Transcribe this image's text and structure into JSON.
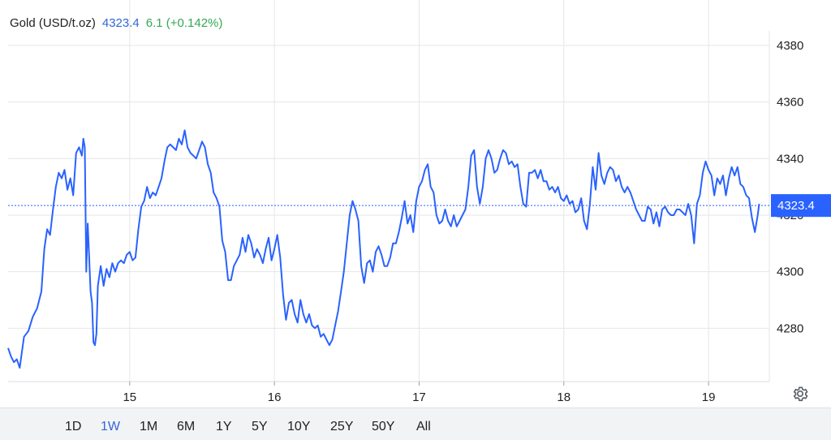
{
  "header": {
    "name": "Gold (USD/t.oz)",
    "price": "4323.4",
    "change": "6.1 (+0.142%)"
  },
  "colors": {
    "line": "#2962ff",
    "price_accent": "#3367d6",
    "change_positive": "#34a853",
    "grid": "#e6e6e6"
  },
  "ranges": [
    "1D",
    "1W",
    "1M",
    "6M",
    "1Y",
    "5Y",
    "10Y",
    "25Y",
    "50Y",
    "All"
  ],
  "active_range": "1W",
  "settings_icon": "gear-icon",
  "chart_data": {
    "type": "line",
    "title": "",
    "xlabel": "",
    "ylabel": "",
    "x_ticks": [
      {
        "label": "15",
        "x": 15.0
      },
      {
        "label": "16",
        "x": 16.0
      },
      {
        "label": "17",
        "x": 17.0
      },
      {
        "label": "18",
        "x": 18.0
      },
      {
        "label": "19",
        "x": 19.0
      }
    ],
    "xlim": [
      14.16,
      19.42
    ],
    "y_ticks": [
      4280,
      4300,
      4320,
      4340,
      4360,
      4380
    ],
    "ylim": [
      4260,
      4385
    ],
    "last_price": 4323.4,
    "last_price_label": "4323.4",
    "grid": true,
    "series": [
      {
        "values": [
          [
            14.16,
            4273
          ],
          [
            14.18,
            4270
          ],
          [
            14.2,
            4268
          ],
          [
            14.22,
            4269
          ],
          [
            14.24,
            4266
          ],
          [
            14.27,
            4277
          ],
          [
            14.3,
            4279
          ],
          [
            14.33,
            4284
          ],
          [
            14.36,
            4287
          ],
          [
            14.39,
            4293
          ],
          [
            14.41,
            4308
          ],
          [
            14.43,
            4315
          ],
          [
            14.45,
            4313
          ],
          [
            14.47,
            4322
          ],
          [
            14.49,
            4330
          ],
          [
            14.51,
            4335
          ],
          [
            14.53,
            4333
          ],
          [
            14.55,
            4336
          ],
          [
            14.57,
            4329
          ],
          [
            14.59,
            4333
          ],
          [
            14.61,
            4327
          ],
          [
            14.63,
            4342
          ],
          [
            14.65,
            4344
          ],
          [
            14.67,
            4341
          ],
          [
            14.68,
            4347
          ],
          [
            14.69,
            4344
          ],
          [
            14.7,
            4300
          ],
          [
            14.71,
            4317
          ],
          [
            14.72,
            4305
          ],
          [
            14.73,
            4293
          ],
          [
            14.74,
            4289
          ],
          [
            14.75,
            4275
          ],
          [
            14.76,
            4274
          ],
          [
            14.77,
            4278
          ],
          [
            14.78,
            4295
          ],
          [
            14.8,
            4302
          ],
          [
            14.82,
            4295
          ],
          [
            14.84,
            4301
          ],
          [
            14.86,
            4298
          ],
          [
            14.88,
            4303
          ],
          [
            14.9,
            4300
          ],
          [
            14.92,
            4303
          ],
          [
            14.94,
            4304
          ],
          [
            14.96,
            4303
          ],
          [
            14.98,
            4306
          ],
          [
            15.0,
            4307
          ],
          [
            15.02,
            4304
          ],
          [
            15.04,
            4305
          ],
          [
            15.06,
            4315
          ],
          [
            15.08,
            4323
          ],
          [
            15.1,
            4325
          ],
          [
            15.12,
            4330
          ],
          [
            15.14,
            4326
          ],
          [
            15.16,
            4328
          ],
          [
            15.18,
            4327
          ],
          [
            15.2,
            4330
          ],
          [
            15.22,
            4333
          ],
          [
            15.24,
            4339
          ],
          [
            15.26,
            4344
          ],
          [
            15.28,
            4345
          ],
          [
            15.3,
            4344
          ],
          [
            15.32,
            4343
          ],
          [
            15.34,
            4347
          ],
          [
            15.36,
            4345
          ],
          [
            15.38,
            4350
          ],
          [
            15.4,
            4344
          ],
          [
            15.42,
            4342
          ],
          [
            15.44,
            4341
          ],
          [
            15.46,
            4340
          ],
          [
            15.48,
            4343
          ],
          [
            15.5,
            4346
          ],
          [
            15.52,
            4344
          ],
          [
            15.54,
            4338
          ],
          [
            15.56,
            4335
          ],
          [
            15.58,
            4328
          ],
          [
            15.6,
            4326
          ],
          [
            15.62,
            4323
          ],
          [
            15.64,
            4311
          ],
          [
            15.66,
            4307
          ],
          [
            15.68,
            4297
          ],
          [
            15.7,
            4297
          ],
          [
            15.72,
            4302
          ],
          [
            15.74,
            4304
          ],
          [
            15.76,
            4306
          ],
          [
            15.78,
            4312
          ],
          [
            15.8,
            4307
          ],
          [
            15.82,
            4313
          ],
          [
            15.84,
            4310
          ],
          [
            15.86,
            4305
          ],
          [
            15.88,
            4308
          ],
          [
            15.9,
            4306
          ],
          [
            15.92,
            4303
          ],
          [
            15.94,
            4308
          ],
          [
            15.96,
            4312
          ],
          [
            15.98,
            4304
          ],
          [
            16.0,
            4308
          ],
          [
            16.02,
            4313
          ],
          [
            16.04,
            4305
          ],
          [
            16.06,
            4292
          ],
          [
            16.08,
            4283
          ],
          [
            16.1,
            4289
          ],
          [
            16.12,
            4290
          ],
          [
            16.14,
            4285
          ],
          [
            16.16,
            4282
          ],
          [
            16.18,
            4290
          ],
          [
            16.2,
            4285
          ],
          [
            16.22,
            4282
          ],
          [
            16.24,
            4285
          ],
          [
            16.26,
            4281
          ],
          [
            16.28,
            4280
          ],
          [
            16.3,
            4281
          ],
          [
            16.32,
            4277
          ],
          [
            16.34,
            4278
          ],
          [
            16.36,
            4276
          ],
          [
            16.38,
            4274
          ],
          [
            16.4,
            4276
          ],
          [
            16.42,
            4281
          ],
          [
            16.44,
            4286
          ],
          [
            16.46,
            4293
          ],
          [
            16.48,
            4300
          ],
          [
            16.5,
            4310
          ],
          [
            16.52,
            4320
          ],
          [
            16.54,
            4325
          ],
          [
            16.56,
            4322
          ],
          [
            16.58,
            4318
          ],
          [
            16.6,
            4302
          ],
          [
            16.62,
            4296
          ],
          [
            16.64,
            4303
          ],
          [
            16.66,
            4304
          ],
          [
            16.68,
            4300
          ],
          [
            16.7,
            4307
          ],
          [
            16.72,
            4309
          ],
          [
            16.74,
            4306
          ],
          [
            16.76,
            4302
          ],
          [
            16.78,
            4302
          ],
          [
            16.8,
            4305
          ],
          [
            16.82,
            4310
          ],
          [
            16.84,
            4310
          ],
          [
            16.86,
            4314
          ],
          [
            16.88,
            4319
          ],
          [
            16.9,
            4325
          ],
          [
            16.92,
            4317
          ],
          [
            16.94,
            4320
          ],
          [
            16.96,
            4314
          ],
          [
            16.98,
            4325
          ],
          [
            17.0,
            4330
          ],
          [
            17.02,
            4332
          ],
          [
            17.04,
            4336
          ],
          [
            17.06,
            4338
          ],
          [
            17.08,
            4330
          ],
          [
            17.1,
            4328
          ],
          [
            17.12,
            4320
          ],
          [
            17.14,
            4317
          ],
          [
            17.16,
            4318
          ],
          [
            17.18,
            4322
          ],
          [
            17.2,
            4318
          ],
          [
            17.22,
            4316
          ],
          [
            17.24,
            4320
          ],
          [
            17.26,
            4316
          ],
          [
            17.28,
            4318
          ],
          [
            17.3,
            4320
          ],
          [
            17.32,
            4322
          ],
          [
            17.34,
            4330
          ],
          [
            17.36,
            4341
          ],
          [
            17.38,
            4343
          ],
          [
            17.4,
            4330
          ],
          [
            17.42,
            4324
          ],
          [
            17.44,
            4330
          ],
          [
            17.46,
            4340
          ],
          [
            17.48,
            4343
          ],
          [
            17.5,
            4340
          ],
          [
            17.52,
            4335
          ],
          [
            17.54,
            4336
          ],
          [
            17.56,
            4340
          ],
          [
            17.58,
            4343
          ],
          [
            17.6,
            4342
          ],
          [
            17.62,
            4338
          ],
          [
            17.64,
            4339
          ],
          [
            17.66,
            4337
          ],
          [
            17.68,
            4338
          ],
          [
            17.7,
            4330
          ],
          [
            17.72,
            4324
          ],
          [
            17.74,
            4323
          ],
          [
            17.76,
            4335
          ],
          [
            17.78,
            4335
          ],
          [
            17.8,
            4336
          ],
          [
            17.82,
            4333
          ],
          [
            17.84,
            4336
          ],
          [
            17.86,
            4332
          ],
          [
            17.88,
            4332
          ],
          [
            17.9,
            4329
          ],
          [
            17.92,
            4330
          ],
          [
            17.94,
            4328
          ],
          [
            17.96,
            4330
          ],
          [
            17.98,
            4326
          ],
          [
            18.0,
            4325
          ],
          [
            18.02,
            4327
          ],
          [
            18.04,
            4324
          ],
          [
            18.06,
            4325
          ],
          [
            18.08,
            4321
          ],
          [
            18.1,
            4322
          ],
          [
            18.12,
            4326
          ],
          [
            18.14,
            4318
          ],
          [
            18.16,
            4315
          ],
          [
            18.18,
            4324
          ],
          [
            18.2,
            4337
          ],
          [
            18.22,
            4329
          ],
          [
            18.24,
            4342
          ],
          [
            18.26,
            4334
          ],
          [
            18.28,
            4331
          ],
          [
            18.3,
            4335
          ],
          [
            18.32,
            4337
          ],
          [
            18.34,
            4336
          ],
          [
            18.36,
            4332
          ],
          [
            18.38,
            4334
          ],
          [
            18.4,
            4330
          ],
          [
            18.42,
            4328
          ],
          [
            18.44,
            4330
          ],
          [
            18.46,
            4328
          ],
          [
            18.48,
            4325
          ],
          [
            18.5,
            4322
          ],
          [
            18.52,
            4320
          ],
          [
            18.54,
            4318
          ],
          [
            18.56,
            4318
          ],
          [
            18.58,
            4323
          ],
          [
            18.6,
            4322
          ],
          [
            18.62,
            4317
          ],
          [
            18.64,
            4321
          ],
          [
            18.66,
            4316
          ],
          [
            18.68,
            4322
          ],
          [
            18.7,
            4323
          ],
          [
            18.72,
            4321
          ],
          [
            18.74,
            4320
          ],
          [
            18.76,
            4320
          ],
          [
            18.78,
            4322
          ],
          [
            18.8,
            4322
          ],
          [
            18.82,
            4321
          ],
          [
            18.84,
            4320
          ],
          [
            18.86,
            4324
          ],
          [
            18.88,
            4320
          ],
          [
            18.9,
            4310
          ],
          [
            18.92,
            4324
          ],
          [
            18.94,
            4327
          ],
          [
            18.96,
            4335
          ],
          [
            18.98,
            4339
          ],
          [
            19.0,
            4336
          ],
          [
            19.02,
            4334
          ],
          [
            19.04,
            4327
          ],
          [
            19.06,
            4333
          ],
          [
            19.08,
            4331
          ],
          [
            19.1,
            4334
          ],
          [
            19.12,
            4327
          ],
          [
            19.14,
            4333
          ],
          [
            19.16,
            4337
          ],
          [
            19.18,
            4334
          ],
          [
            19.2,
            4337
          ],
          [
            19.22,
            4331
          ],
          [
            19.24,
            4330
          ],
          [
            19.26,
            4327
          ],
          [
            19.28,
            4326
          ],
          [
            19.3,
            4319
          ],
          [
            19.32,
            4314
          ],
          [
            19.34,
            4320
          ],
          [
            19.35,
            4324
          ]
        ]
      }
    ]
  }
}
